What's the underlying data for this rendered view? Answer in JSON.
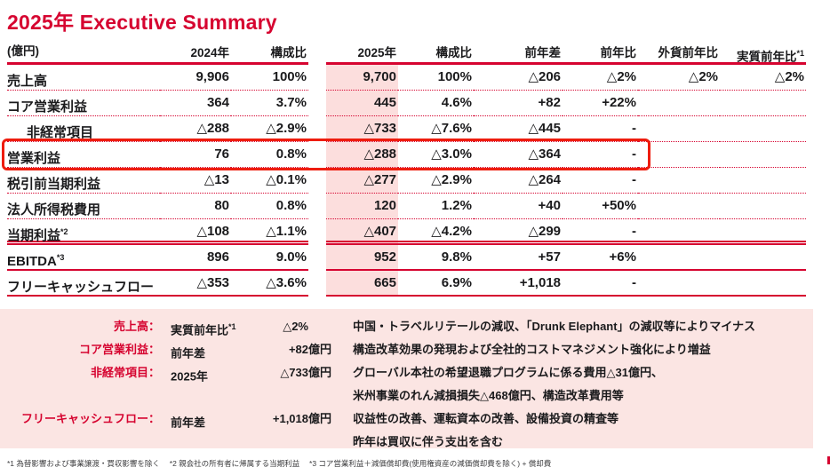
{
  "colors": {
    "accent": "#d60430",
    "box": "#ee1c0d",
    "pink-band": "#fbe5e3",
    "pink-col": "#fcdedd",
    "text": "#1a1a1c"
  },
  "title": "2025年 Executive Summary",
  "unit_label": "(億円)",
  "table": {
    "headers": {
      "y2024": "2024年",
      "share1": "構成比",
      "y2025": "2025年",
      "share2": "構成比",
      "yoy_diff": "前年差",
      "yoy_pct": "前年比",
      "fx_yoy": "外貨前年比",
      "real_yoy": "実質前年比",
      "real_yoy_sup": "*1"
    },
    "rows": [
      {
        "label": "売上高",
        "sup": "",
        "v2024": "9,906",
        "s2024": "100%",
        "v2025": "9,700",
        "s2025": "100%",
        "diff": "△206",
        "pct": "△2%",
        "fx": "△2%",
        "real": "△2%"
      },
      {
        "label": "コア営業利益",
        "sup": "",
        "v2024": "364",
        "s2024": "3.7%",
        "v2025": "445",
        "s2025": "4.6%",
        "diff": "+82",
        "pct": "+22%",
        "fx": "",
        "real": ""
      },
      {
        "label": "非経常項目",
        "sup": "",
        "v2024": "△288",
        "s2024": "△2.9%",
        "v2025": "△733",
        "s2025": "△7.6%",
        "diff": "△445",
        "pct": "-",
        "fx": "",
        "real": ""
      },
      {
        "label": "営業利益",
        "sup": "",
        "v2024": "76",
        "s2024": "0.8%",
        "v2025": "△288",
        "s2025": "△3.0%",
        "diff": "△364",
        "pct": "-",
        "fx": "",
        "real": ""
      },
      {
        "label": "税引前当期利益",
        "sup": "",
        "v2024": "△13",
        "s2024": "△0.1%",
        "v2025": "△277",
        "s2025": "△2.9%",
        "diff": "△264",
        "pct": "-",
        "fx": "",
        "real": ""
      },
      {
        "label": "法人所得税費用",
        "sup": "",
        "v2024": "80",
        "s2024": "0.8%",
        "v2025": "120",
        "s2025": "1.2%",
        "diff": "+40",
        "pct": "+50%",
        "fx": "",
        "real": ""
      },
      {
        "label": "当期利益",
        "sup": "*2",
        "v2024": "△108",
        "s2024": "△1.1%",
        "v2025": "△407",
        "s2025": "△4.2%",
        "diff": "△299",
        "pct": "-",
        "fx": "",
        "real": ""
      },
      {
        "label": "EBITDA",
        "sup": "*3",
        "v2024": "896",
        "s2024": "9.0%",
        "v2025": "952",
        "s2025": "9.8%",
        "diff": "+57",
        "pct": "+6%",
        "fx": "",
        "real": ""
      },
      {
        "label": "フリーキャッシュフロー",
        "sup": "",
        "v2024": "△353",
        "s2024": "△3.6%",
        "v2025": "665",
        "s2025": "6.9%",
        "diff": "+1,018",
        "pct": "-",
        "fx": "",
        "real": ""
      }
    ]
  },
  "comments": {
    "rows": [
      {
        "label": "売上高：",
        "metric": "実質前年比",
        "metric_sup": "*1",
        "value": "△2%",
        "unit": "",
        "desc": "中国・トラベルリテールの減収、「Drunk Elephant」の減収等によりマイナス"
      },
      {
        "label": "コア営業利益：",
        "metric": "前年差",
        "metric_sup": "",
        "value": "+82",
        "unit": "億円",
        "desc": "構造改革効果の発現および全社的コストマネジメント強化により増益"
      },
      {
        "label": "非経常項目：",
        "metric": "2025年",
        "metric_sup": "",
        "value": "△733",
        "unit": "億円",
        "desc": "グローバル本社の希望退職プログラムに係る費用△31億円、"
      },
      {
        "label": "",
        "metric": "",
        "metric_sup": "",
        "value": "",
        "unit": "",
        "desc": "米州事業のれん減損損失△468億円、構造改革費用等"
      },
      {
        "label": "フリーキャッシュフロー：",
        "metric": "前年差",
        "metric_sup": "",
        "value": "+1,018",
        "unit": "億円",
        "desc": "収益性の改善、運転資本の改善、設備投資の精査等"
      },
      {
        "label": "",
        "metric": "",
        "metric_sup": "",
        "value": "",
        "unit": "",
        "desc": "昨年は買収に伴う支出を含む"
      }
    ]
  },
  "footnote": "*1 為替影響および事業譲渡・買収影響を除く　 *2 親会社の所有者に帰属する当期利益　 *3 コア営業利益＋減価償却費(使用権資産の減価償却費を除く) + 償却費"
}
